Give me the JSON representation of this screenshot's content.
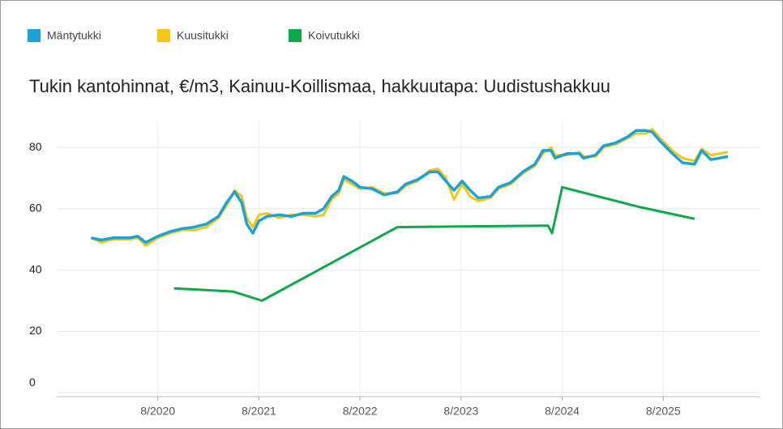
{
  "chart_data": {
    "type": "line",
    "title": "Tukin kantohinnat, €/m3,  Kainuu-Koillismaa, hakkuutapa: Uudistushakkuu",
    "xlim": [
      2019.58,
      2026.54
    ],
    "ylim": [
      -1.3,
      89
    ],
    "xticks": [
      {
        "value": 2020.58,
        "label": "8/2020"
      },
      {
        "value": 2021.58,
        "label": "8/2021"
      },
      {
        "value": 2022.58,
        "label": "8/2022"
      },
      {
        "value": 2023.58,
        "label": "8/2023"
      },
      {
        "value": 2024.58,
        "label": "8/2024"
      },
      {
        "value": 2025.58,
        "label": "8/2025"
      }
    ],
    "yticks": [
      0,
      20,
      40,
      60,
      80
    ],
    "grid": true,
    "legend": "top",
    "series": [
      {
        "name": "Mäntytukki",
        "color": "#1ba3d6",
        "x": [
          2019.92,
          2020.02,
          2020.14,
          2020.3,
          2020.38,
          2020.46,
          2020.58,
          2020.7,
          2020.82,
          2020.94,
          2021.06,
          2021.18,
          2021.26,
          2021.34,
          2021.41,
          2021.46,
          2021.52,
          2021.58,
          2021.66,
          2021.78,
          2021.9,
          2022.02,
          2022.14,
          2022.22,
          2022.3,
          2022.37,
          2022.42,
          2022.5,
          2022.58,
          2022.7,
          2022.82,
          2022.95,
          2023.03,
          2023.15,
          2023.27,
          2023.35,
          2023.43,
          2023.51,
          2023.59,
          2023.67,
          2023.75,
          2023.87,
          2023.95,
          2024.07,
          2024.19,
          2024.31,
          2024.39,
          2024.47,
          2024.51,
          2024.63,
          2024.75,
          2024.79,
          2024.91,
          2024.99,
          2025.11,
          2025.23,
          2025.31,
          2025.41,
          2025.47,
          2025.55,
          2025.67,
          2025.77,
          2025.89,
          2025.96,
          2026.05,
          2026.22
        ],
        "values": [
          50.5,
          49.8,
          50.5,
          50.5,
          51,
          49,
          51,
          52.5,
          53.5,
          54,
          55,
          57.5,
          62,
          65.5,
          62,
          55,
          52,
          56,
          57.5,
          58,
          57.5,
          58.5,
          58.5,
          60,
          64,
          66,
          70.5,
          69,
          67,
          66.5,
          64.5,
          65.5,
          68,
          69.5,
          72,
          72,
          69,
          66,
          69,
          66,
          63.5,
          64,
          67,
          68.5,
          72,
          74.5,
          79,
          79,
          76.5,
          78,
          78,
          76.5,
          77.5,
          80.5,
          81.5,
          83.5,
          85.5,
          85.5,
          85,
          82,
          78,
          75,
          74.5,
          79,
          76,
          77
        ]
      },
      {
        "name": "Kuusitukki",
        "color": "#f5c518",
        "x": [
          2019.92,
          2020.02,
          2020.14,
          2020.3,
          2020.38,
          2020.46,
          2020.58,
          2020.7,
          2020.82,
          2020.94,
          2021.06,
          2021.18,
          2021.26,
          2021.34,
          2021.41,
          2021.46,
          2021.52,
          2021.58,
          2021.66,
          2021.78,
          2021.9,
          2022.02,
          2022.14,
          2022.22,
          2022.3,
          2022.37,
          2022.42,
          2022.5,
          2022.58,
          2022.7,
          2022.82,
          2022.95,
          2023.03,
          2023.15,
          2023.27,
          2023.35,
          2023.43,
          2023.51,
          2023.59,
          2023.67,
          2023.75,
          2023.87,
          2023.95,
          2024.07,
          2024.19,
          2024.31,
          2024.39,
          2024.47,
          2024.51,
          2024.63,
          2024.75,
          2024.79,
          2024.91,
          2024.99,
          2025.11,
          2025.23,
          2025.31,
          2025.41,
          2025.47,
          2025.55,
          2025.67,
          2025.77,
          2025.89,
          2025.96,
          2026.05,
          2026.22
        ],
        "values": [
          50.5,
          49,
          50,
          50,
          50.5,
          48,
          50.5,
          52,
          53,
          53,
          54,
          57,
          61,
          66,
          64,
          57,
          54,
          58,
          58.5,
          57,
          58,
          58,
          57.5,
          58,
          63,
          65,
          69.5,
          68,
          66.5,
          67,
          65,
          65,
          67.5,
          69,
          72.5,
          73,
          70,
          63,
          68,
          64,
          62.5,
          63.5,
          66.5,
          68,
          71.5,
          74,
          78,
          80,
          77.5,
          77.5,
          78.5,
          77,
          77,
          80,
          81,
          83,
          84.5,
          84.5,
          86,
          83,
          79,
          76.5,
          75.5,
          79.5,
          77.5,
          78.5
        ]
      },
      {
        "name": "Koivutukki",
        "color": "#0fa84a",
        "x": [
          2020.74,
          2021.32,
          2021.61,
          2022.95,
          2024.44,
          2024.48,
          2024.58,
          2025.35,
          2025.89
        ],
        "values": [
          34,
          33,
          30,
          54,
          54.5,
          52,
          67,
          60.5,
          56.7
        ]
      }
    ]
  }
}
